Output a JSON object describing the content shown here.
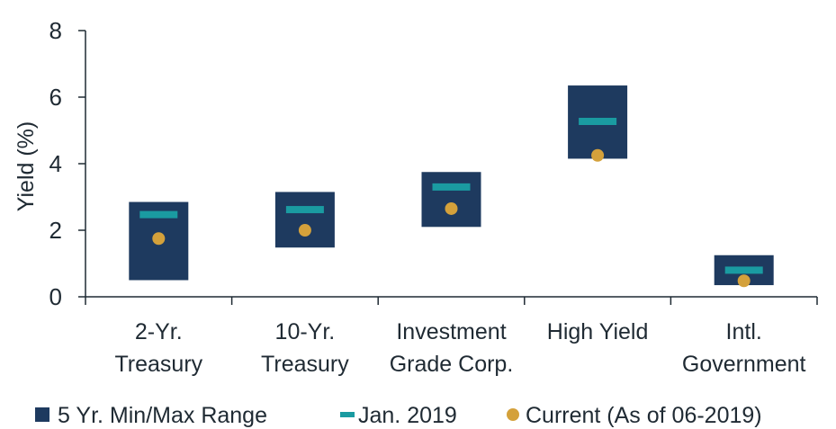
{
  "chart_data": {
    "type": "range",
    "ylabel": "Yield (%)",
    "ylim": [
      0,
      8
    ],
    "yticks": [
      "0",
      "2",
      "4",
      "6",
      "8"
    ],
    "categories": [
      [
        "2-Yr.",
        "Treasury"
      ],
      [
        "10-Yr.",
        "Treasury"
      ],
      [
        "Investment",
        "Grade Corp."
      ],
      [
        "High Yield"
      ],
      [
        "Intl.",
        "Government"
      ]
    ],
    "series": [
      {
        "name": "5 Yr. Min/Max Range",
        "kind": "range",
        "min": [
          0.5,
          1.48,
          2.1,
          4.15,
          0.35
        ],
        "max": [
          2.85,
          3.15,
          3.75,
          6.35,
          1.25
        ]
      },
      {
        "name": "Jan. 2019",
        "kind": "dash",
        "values": [
          2.47,
          2.62,
          3.3,
          5.27,
          0.8
        ]
      },
      {
        "name": "Current (As of  06-2019)",
        "kind": "dot",
        "values": [
          1.75,
          2.0,
          2.65,
          4.25,
          0.48
        ]
      }
    ],
    "legend_position": "bottom",
    "colors": {
      "range": "#1e3a5f",
      "jan": "#1a9ba1",
      "current": "#d4a13b",
      "axis": "#1f2a33"
    }
  }
}
